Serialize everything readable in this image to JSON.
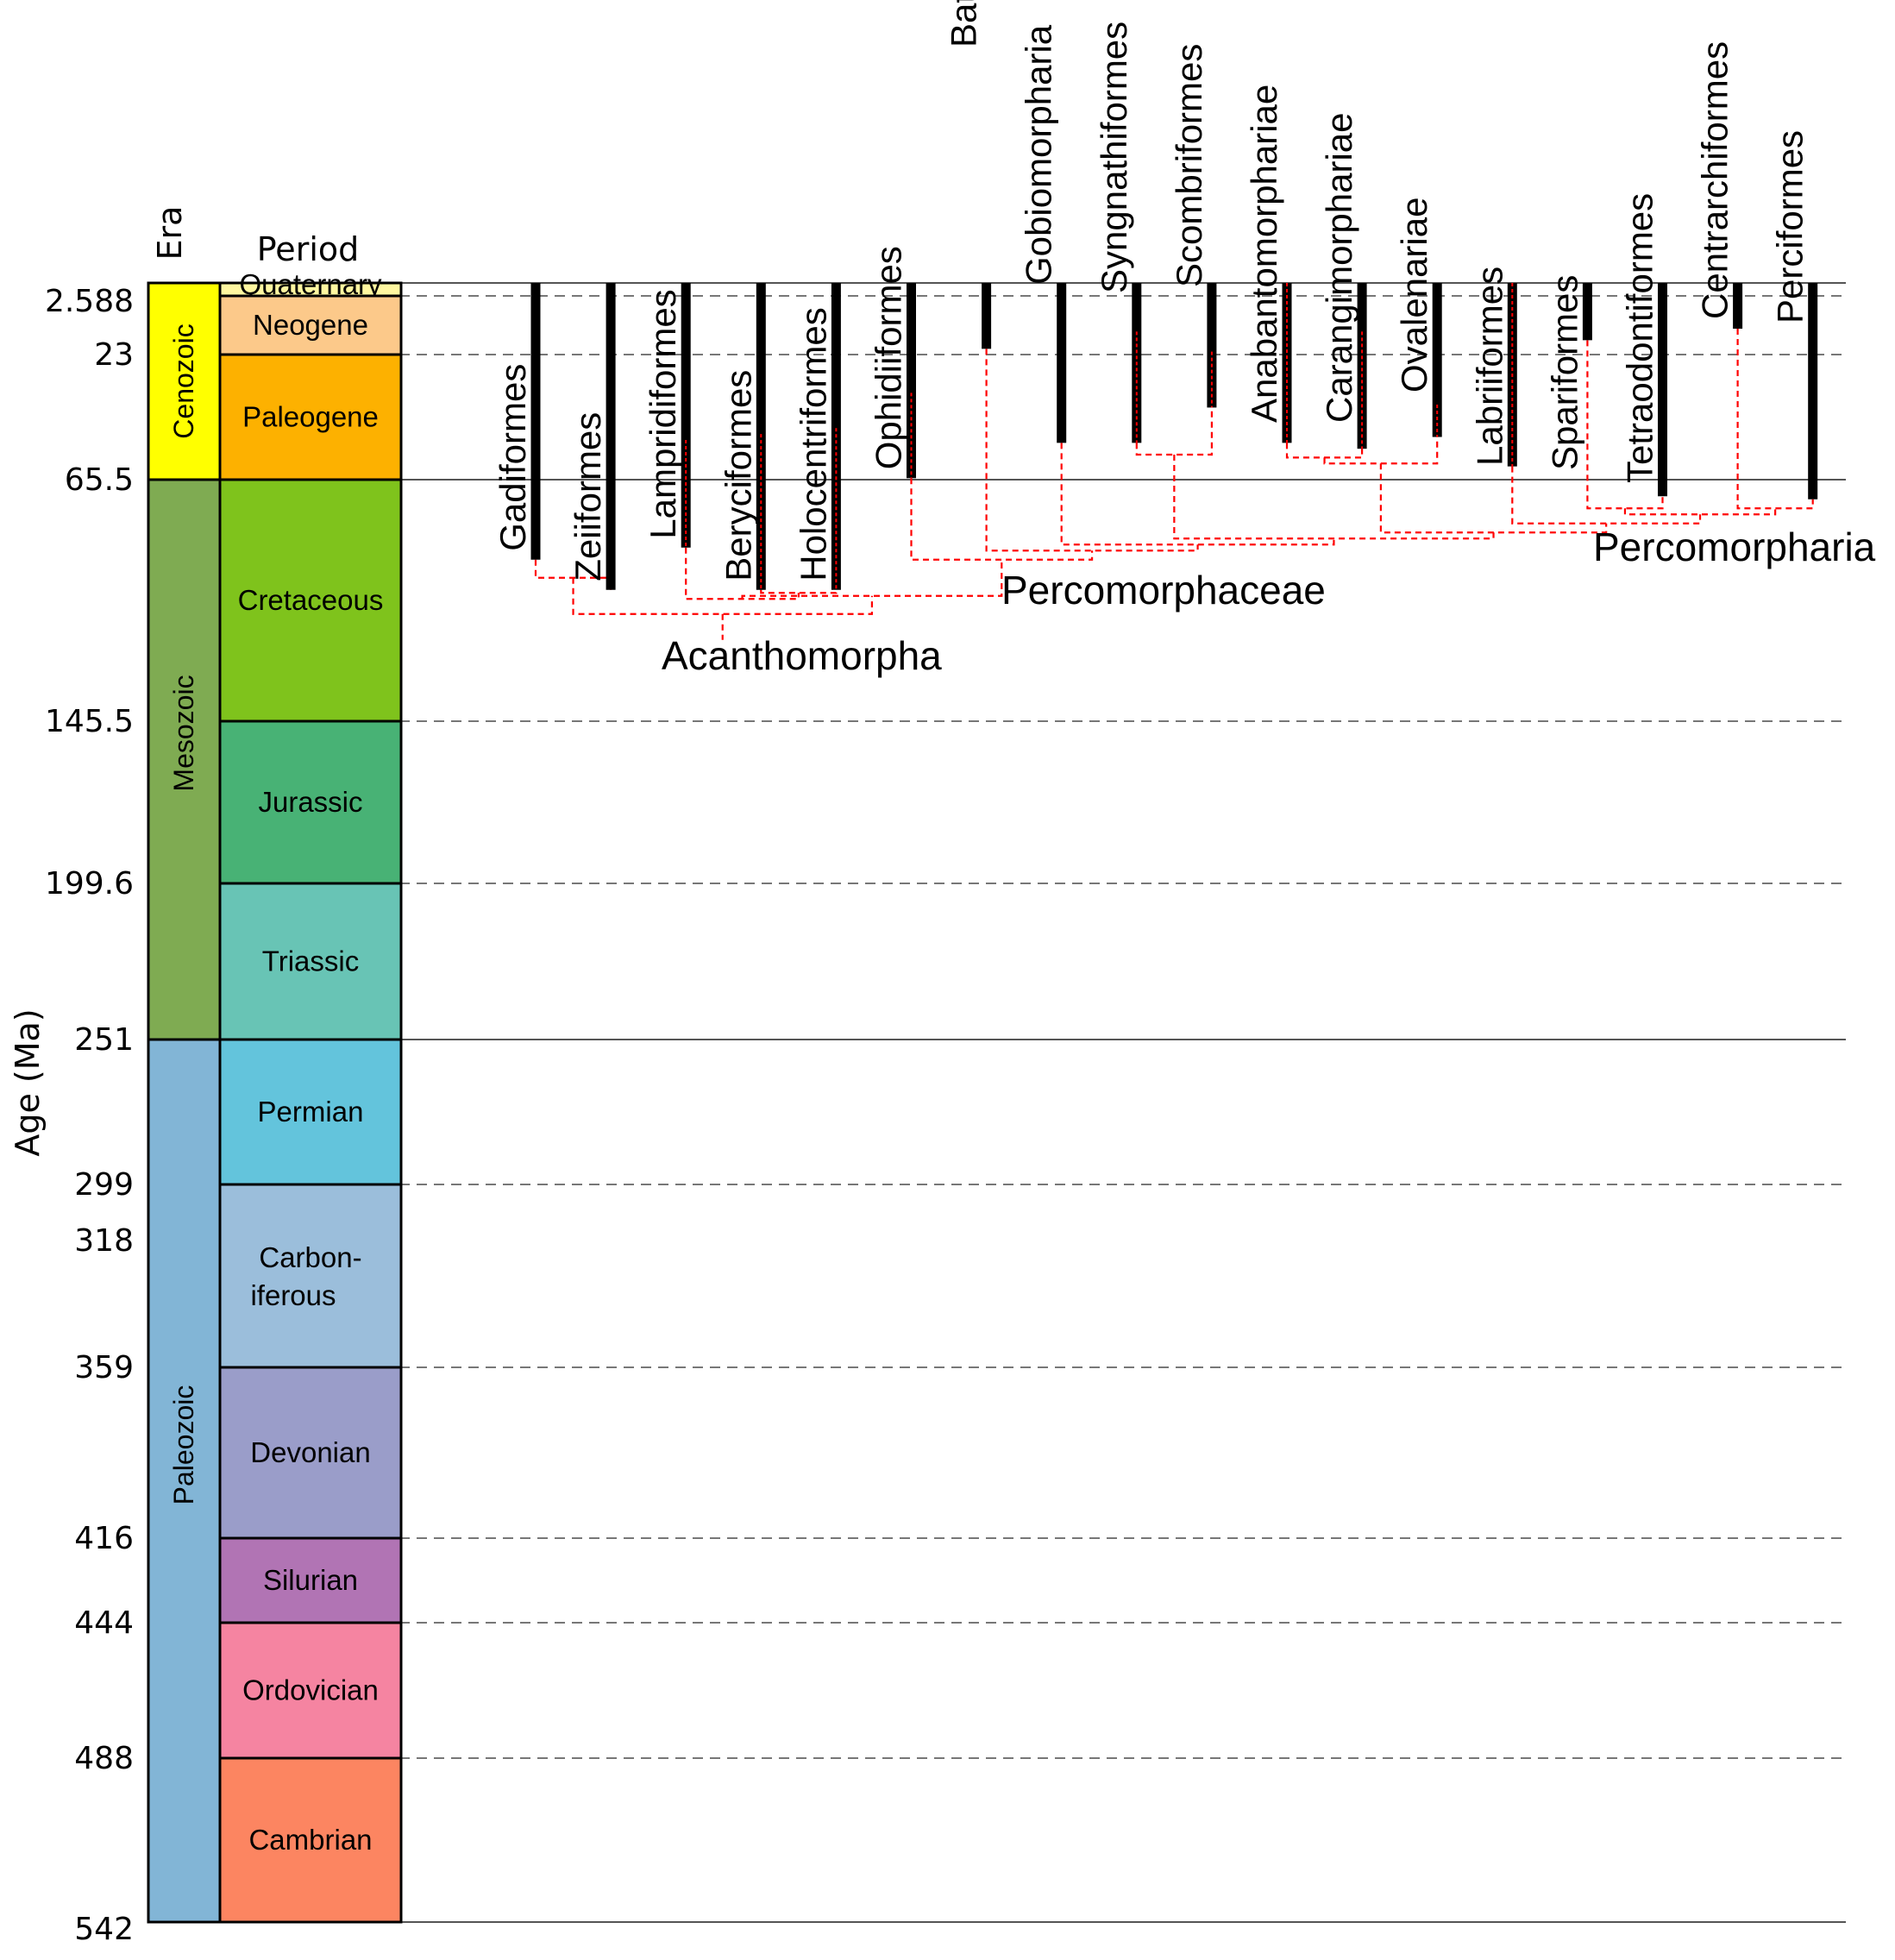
{
  "axis": {
    "ylabel": "Age (Ma)",
    "era_header": "Era",
    "period_header": "Period"
  },
  "boundaries": [
    {
      "age": 0,
      "label": "",
      "line": "solid"
    },
    {
      "age": 2.588,
      "label": "2.588",
      "line": "dashed"
    },
    {
      "age": 23,
      "label": "23",
      "line": "dashed"
    },
    {
      "age": 65.5,
      "label": "65.5",
      "line": "solid"
    },
    {
      "age": 145.5,
      "label": "145.5",
      "line": "dashed"
    },
    {
      "age": 199.6,
      "label": "199.6",
      "line": "dashed"
    },
    {
      "age": 251,
      "label": "251",
      "line": "solid"
    },
    {
      "age": 299,
      "label": "299",
      "line": "dashed"
    },
    {
      "age": 318,
      "label": "318",
      "line": "none"
    },
    {
      "age": 359,
      "label": "359",
      "line": "dashed"
    },
    {
      "age": 416,
      "label": "416",
      "line": "dashed"
    },
    {
      "age": 444,
      "label": "444",
      "line": "dashed"
    },
    {
      "age": 488,
      "label": "488",
      "line": "dashed"
    },
    {
      "age": 542,
      "label": "542",
      "line": "solid"
    }
  ],
  "eras": [
    {
      "name": "Cenozoic",
      "start": 0,
      "end": 65.5,
      "color": "#ffff00"
    },
    {
      "name": "Mesozoic",
      "start": 65.5,
      "end": 251,
      "color": "#7fab52"
    },
    {
      "name": "Paleozoic",
      "start": 251,
      "end": 542,
      "color": "#82b5d6"
    }
  ],
  "periods": [
    {
      "name": "Quaternary",
      "start": 0,
      "end": 2.588,
      "color": "#fff7a0"
    },
    {
      "name": "Neogene",
      "start": 2.588,
      "end": 23,
      "color": "#fcc98a"
    },
    {
      "name": "Paleogene",
      "start": 23,
      "end": 65.5,
      "color": "#fdb100"
    },
    {
      "name": "Cretaceous",
      "start": 65.5,
      "end": 145.5,
      "color": "#7fc31c"
    },
    {
      "name": "Jurassic",
      "start": 145.5,
      "end": 199.6,
      "color": "#48b275"
    },
    {
      "name": "Triassic",
      "start": 199.6,
      "end": 251,
      "color": "#68c4b5"
    },
    {
      "name": "Permian",
      "start": 251,
      "end": 299,
      "color": "#63c4dc"
    },
    {
      "name": "Carbon-|iferous",
      "start": 299,
      "end": 359,
      "color": "#9bbedb"
    },
    {
      "name": "Devonian",
      "start": 359,
      "end": 416,
      "color": "#9a9dc9"
    },
    {
      "name": "Silurian",
      "start": 416,
      "end": 444,
      "color": "#b174b4"
    },
    {
      "name": "Ordovician",
      "start": 444,
      "end": 488,
      "color": "#f584a1"
    },
    {
      "name": "Cambrian",
      "start": 488,
      "end": 542,
      "color": "#fc8561"
    }
  ],
  "taxa": [
    {
      "name": "Gadiformes",
      "min_age": 0,
      "max_age": 92,
      "dashed_from": null
    },
    {
      "name": "Zeiiformes",
      "min_age": 0,
      "max_age": 102,
      "dashed_from": null
    },
    {
      "name": "Lampridiformes",
      "min_age": 0,
      "max_age": 88,
      "dashed_from": 52
    },
    {
      "name": "Beryciformes",
      "min_age": 0,
      "max_age": 102,
      "dashed_from": 50
    },
    {
      "name": "Holocentriformes",
      "min_age": 0,
      "max_age": 102,
      "dashed_from": 48
    },
    {
      "name": "Ophidiiformes",
      "min_age": 0,
      "max_age": 65,
      "dashed_from": 36
    },
    {
      "name": "Batrachoidiformes",
      "min_age": 0,
      "max_age": 21,
      "dashed_from": null
    },
    {
      "name": "Gobiomorpharia",
      "min_age": 0,
      "max_age": 53,
      "dashed_from": null
    },
    {
      "name": "Syngnathiformes",
      "min_age": 0,
      "max_age": 53,
      "dashed_from": 15
    },
    {
      "name": "Scombriformes",
      "min_age": 0,
      "max_age": 41,
      "dashed_from": 22
    },
    {
      "name": "Anabantomorphariae",
      "min_age": 0,
      "max_age": 53,
      "dashed_from": 0
    },
    {
      "name": "Carangimorphariae",
      "min_age": 0,
      "max_age": 55,
      "dashed_from": 15
    },
    {
      "name": "Ovalenariae",
      "min_age": 0,
      "max_age": 51,
      "dashed_from": 40
    },
    {
      "name": "Labriiformes",
      "min_age": 0,
      "max_age": 61,
      "dashed_from": 0
    },
    {
      "name": "Spariformes",
      "min_age": 0,
      "max_age": 18,
      "dashed_from": null
    },
    {
      "name": "Tetraodontiformes",
      "min_age": 0,
      "max_age": 71,
      "dashed_from": null
    },
    {
      "name": "Centrarchiformes",
      "min_age": 0,
      "max_age": 14,
      "dashed_from": null
    },
    {
      "name": "Perciformes",
      "min_age": 0,
      "max_age": 72,
      "dashed_from": null
    }
  ],
  "clades": [
    {
      "name": "Acanthomorpha",
      "children": [
        0,
        1,
        2,
        3,
        4,
        5,
        6,
        7,
        8,
        9,
        10,
        11,
        12,
        13,
        14,
        15,
        16,
        17
      ]
    },
    {
      "name": "Percomorphaceae",
      "children": [
        5,
        6,
        7,
        8,
        9,
        10,
        11,
        12,
        13,
        14,
        15,
        16,
        17
      ]
    },
    {
      "name": "Percomorpharia",
      "children": [
        13,
        14,
        15,
        16,
        17
      ]
    }
  ],
  "colors": {
    "range_bar": "#000000",
    "ghost_lineage": "#ff0000",
    "divider": "#777777"
  }
}
